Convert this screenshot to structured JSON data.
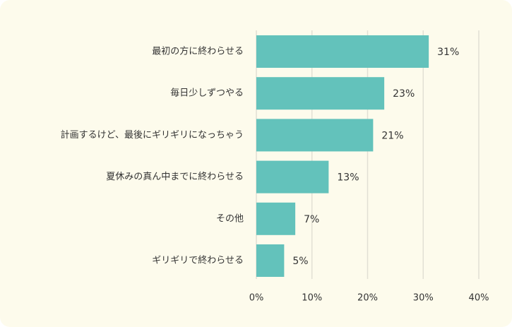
{
  "chart_data": {
    "type": "bar",
    "orientation": "horizontal",
    "categories": [
      "最初の方に終わらせる",
      "毎日少しずつやる",
      "計画するけど、最後にギリギリになっちゃう",
      "夏休みの真ん中までに終わらせる",
      "その他",
      "ギリギリで終わらせる"
    ],
    "values": [
      31,
      23,
      21,
      13,
      7,
      5
    ],
    "value_labels": [
      "31%",
      "23%",
      "21%",
      "13%",
      "7%",
      "5%"
    ],
    "xlim": [
      0,
      40
    ],
    "xticks": [
      0,
      10,
      20,
      30,
      40
    ],
    "xtick_labels": [
      "0%",
      "10%",
      "20%",
      "30%",
      "40%"
    ],
    "grid": "vertical",
    "colors": {
      "bar": "#63c2bb",
      "grid": "#e2e0d4",
      "background": "#fdfbec",
      "text": "#333333"
    }
  }
}
